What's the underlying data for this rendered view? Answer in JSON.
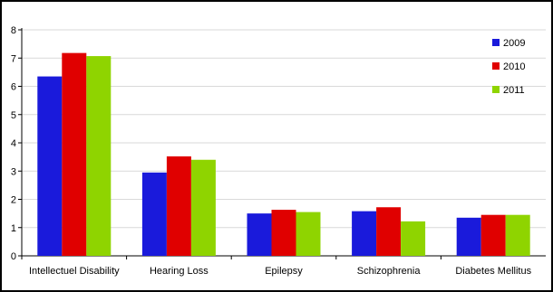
{
  "chart_data": {
    "type": "bar",
    "title": "",
    "xlabel": "",
    "ylabel": "",
    "ylim": [
      0,
      8
    ],
    "yticks": [
      0,
      1,
      2,
      3,
      4,
      5,
      6,
      7,
      8
    ],
    "grid": true,
    "legend_position": "top-right",
    "categories": [
      "Intellectuel Disability",
      "Hearing Loss",
      "Epilepsy",
      "Schizophrenia",
      "Diabetes Mellitus"
    ],
    "series": [
      {
        "name": "2009",
        "color": "#1a1adb",
        "values": [
          6.35,
          2.95,
          1.5,
          1.58,
          1.35
        ]
      },
      {
        "name": "2010",
        "color": "#e00000",
        "values": [
          7.18,
          3.52,
          1.63,
          1.72,
          1.45
        ]
      },
      {
        "name": "2011",
        "color": "#8fd400",
        "values": [
          7.07,
          3.4,
          1.55,
          1.22,
          1.45
        ]
      }
    ]
  }
}
